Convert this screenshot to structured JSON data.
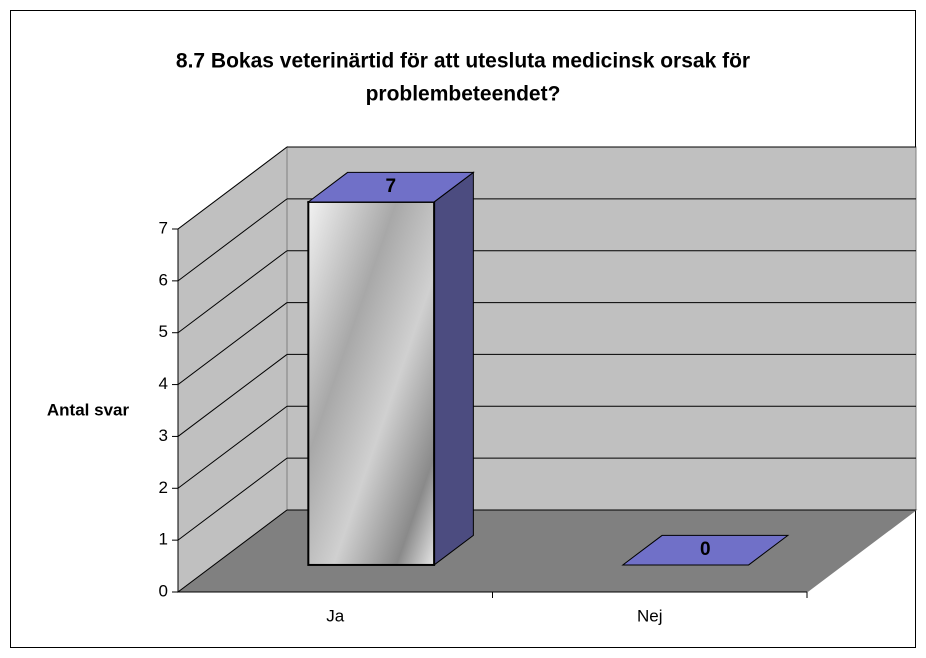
{
  "chart_data": {
    "type": "bar3d",
    "title": [
      "8.7 Bokas veterinärtid för att utesluta medicinsk orsak för",
      "problembeteendet?"
    ],
    "ylabel": "Antal svar",
    "categories": [
      "Ja",
      "Nej"
    ],
    "values": [
      7,
      0
    ],
    "color": "#7070c8",
    "ylim": [
      0,
      7
    ],
    "yticks": [
      0,
      1,
      2,
      3,
      4,
      5,
      6,
      7
    ],
    "grid": true
  }
}
